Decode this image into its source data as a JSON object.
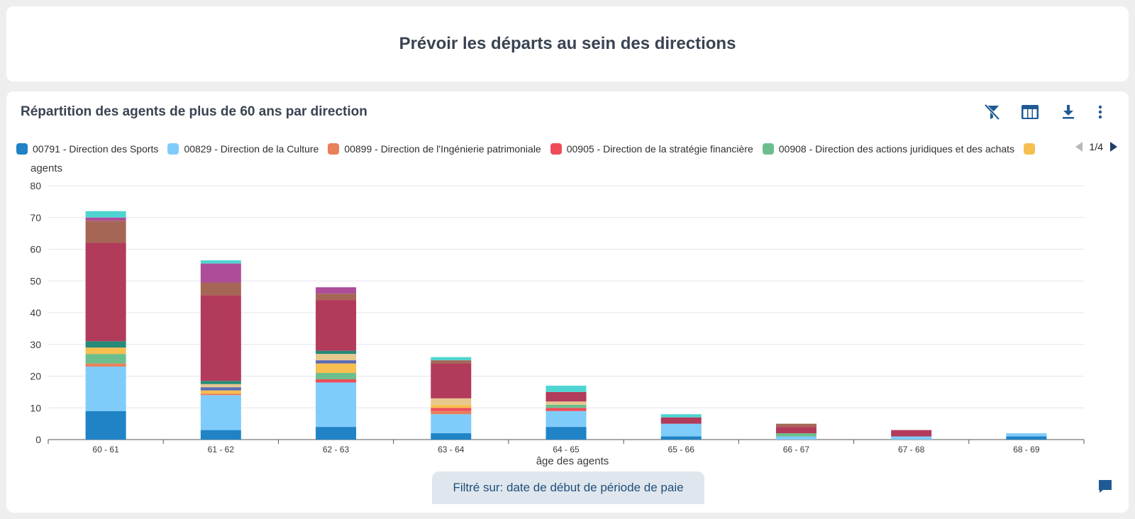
{
  "page_title": "Prévoir les départs au sein des directions",
  "card": {
    "title": "Répartition des agents de plus de 60 ans par direction",
    "toolbar": [
      {
        "name": "clear-filter-icon"
      },
      {
        "name": "table-view-icon"
      },
      {
        "name": "download-icon"
      },
      {
        "name": "more-options-icon"
      }
    ],
    "legend_page": "1/4",
    "filter_label": "Filtré sur: date de début de période de paie"
  },
  "legend": [
    {
      "label": "00791 - Direction des Sports",
      "color": "#1f83c6"
    },
    {
      "label": "00829 - Direction de la Culture",
      "color": "#7fccfb"
    },
    {
      "label": "00899 - Direction de l'Ingénierie patrimoniale",
      "color": "#e8805c"
    },
    {
      "label": "00905 - Direction de la stratégie financière",
      "color": "#ef4c5a"
    },
    {
      "label": "00908 - Direction des actions juridiques et des achats",
      "color": "#6cbf8c"
    },
    {
      "label": "",
      "color": "#f6bf4f"
    }
  ],
  "chart_data": {
    "type": "bar",
    "stacked": true,
    "title": "",
    "xlabel": "âge des agents",
    "ylabel": "agents",
    "ylim": [
      0,
      80
    ],
    "yticks": [
      0,
      10,
      20,
      30,
      40,
      50,
      60,
      70,
      80
    ],
    "grid": true,
    "legend_position": "top",
    "categories": [
      "60 - 61",
      "61 - 62",
      "62 - 63",
      "63 - 64",
      "64 - 65",
      "65 - 66",
      "66 - 67",
      "67 - 68",
      "68 - 69"
    ],
    "series": [
      {
        "name": "00791 - Direction des Sports",
        "color": "#1f83c6",
        "values": [
          9,
          3,
          4,
          2,
          4,
          1,
          0,
          0,
          1
        ]
      },
      {
        "name": "00829 - Direction de la Culture",
        "color": "#7fccfb",
        "values": [
          14,
          11,
          14,
          6,
          5,
          4,
          1,
          1,
          1
        ]
      },
      {
        "name": "00899 - Direction de l'Ingénierie patrimoniale",
        "color": "#e8805c",
        "values": [
          1,
          0.5,
          0,
          1,
          0,
          0,
          0,
          0,
          0
        ]
      },
      {
        "name": "00905 - Direction de la stratégie financière",
        "color": "#ef4c5a",
        "values": [
          0,
          0,
          1,
          1,
          1,
          0,
          0,
          0,
          0
        ]
      },
      {
        "name": "00908 - Direction des actions juridiques et des achats",
        "color": "#6cbf8c",
        "values": [
          3,
          0,
          2,
          0,
          1,
          0,
          1,
          0,
          0
        ]
      },
      {
        "name": "",
        "color": "#f6bf4f",
        "values": [
          2,
          1,
          3,
          1,
          0,
          0,
          0,
          0,
          0
        ]
      },
      {
        "name": "",
        "color": "#5b6bb5",
        "values": [
          0,
          1,
          1,
          0,
          0,
          0,
          0,
          0,
          0
        ]
      },
      {
        "name": "",
        "color": "#e6c88f",
        "values": [
          0,
          1,
          2,
          2,
          1,
          0,
          0,
          0,
          0
        ]
      },
      {
        "name": "",
        "color": "#258a78",
        "values": [
          2,
          1,
          1,
          0,
          0,
          0,
          0,
          0,
          0
        ]
      },
      {
        "name": "",
        "color": "#b23a5a",
        "values": [
          31,
          27,
          16,
          11,
          3,
          2,
          2,
          2,
          0
        ]
      },
      {
        "name": "",
        "color": "#a66656",
        "values": [
          7,
          4,
          2,
          1,
          0,
          0,
          1,
          0,
          0
        ]
      },
      {
        "name": "",
        "color": "#ad4d9a",
        "values": [
          1,
          6,
          2,
          0,
          0,
          0,
          0,
          0,
          0
        ]
      },
      {
        "name": "",
        "color": "#4fd5d1",
        "values": [
          2,
          1,
          0,
          1,
          2,
          1,
          0,
          0,
          0
        ]
      }
    ]
  }
}
